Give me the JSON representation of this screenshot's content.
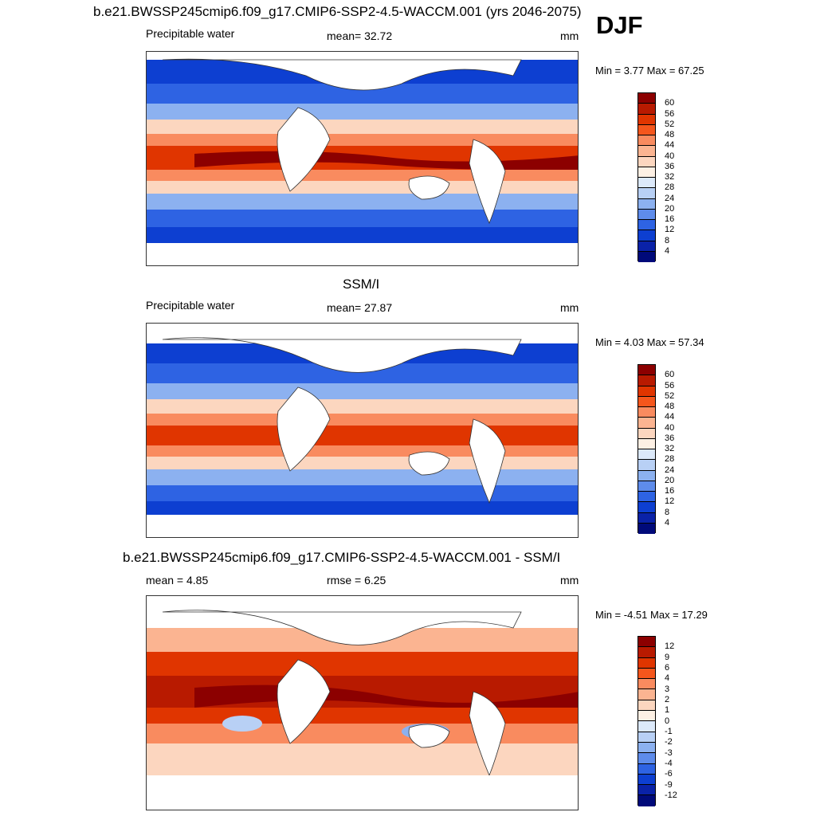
{
  "figure": {
    "season": "DJF",
    "units": "mm"
  },
  "panels": [
    {
      "title": "b.e21.BWSSP245cmip6.f09_g17.CMIP6-SSP2-4.5-WACCM.001 (yrs 2046-2075)",
      "variable": "Precipitable water",
      "stat_text": "mean=  32.72",
      "units": "mm",
      "range_text": "Min =   3.77 Max =  67.25",
      "colorbar_labels": [
        "60",
        "56",
        "52",
        "48",
        "44",
        "40",
        "36",
        "32",
        "28",
        "24",
        "20",
        "16",
        "12",
        "8",
        "4"
      ]
    },
    {
      "title": "SSM/I",
      "variable": "Precipitable water",
      "stat_text": "mean=  27.87",
      "units": "mm",
      "range_text": "Min =   4.03 Max =  57.34",
      "colorbar_labels": [
        "60",
        "56",
        "52",
        "48",
        "44",
        "40",
        "36",
        "32",
        "28",
        "24",
        "20",
        "16",
        "12",
        "8",
        "4"
      ]
    },
    {
      "title": "b.e21.BWSSP245cmip6.f09_g17.CMIP6-SSP2-4.5-WACCM.001 - SSM/I",
      "mean_text": "mean =   4.85",
      "rmse_text": "rmse =   6.25",
      "units": "mm",
      "range_text": "Min =  -4.51 Max =  17.29",
      "colorbar_labels": [
        "12",
        "9",
        "6",
        "4",
        "3",
        "2",
        "1",
        "0",
        "-1",
        "-2",
        "-3",
        "-4",
        "-6",
        "-9",
        "-12"
      ]
    }
  ],
  "colors": {
    "abs_scale": [
      "#8c0000",
      "#b81a00",
      "#e03500",
      "#f5561c",
      "#f98b5f",
      "#fbb491",
      "#fcd6bf",
      "#fdf0e4",
      "#dce9fa",
      "#b8d0f5",
      "#8cb1f0",
      "#5e8ceb",
      "#2e63e3",
      "#0d3fd1",
      "#0a22a8",
      "#000a7a"
    ],
    "diff_scale": [
      "#8c0000",
      "#b81a00",
      "#e03500",
      "#f5561c",
      "#f98b5f",
      "#fbb491",
      "#fcd6bf",
      "#fdf0e4",
      "#dce9fa",
      "#b8d0f5",
      "#8cb1f0",
      "#5e8ceb",
      "#2e63e3",
      "#0d3fd1",
      "#0a22a8",
      "#000a7a"
    ]
  }
}
